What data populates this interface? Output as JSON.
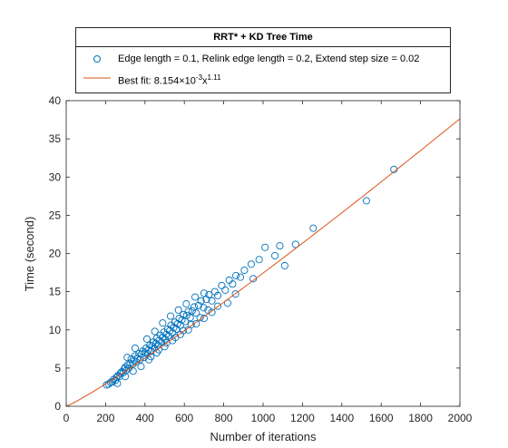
{
  "chart_data": {
    "type": "scatter",
    "title": "RRT* + KD Tree Time",
    "xlabel": "Number of iterations",
    "ylabel": "Time (second)",
    "xlim": [
      0,
      2000
    ],
    "ylim": [
      0,
      40
    ],
    "xticks": [
      0,
      200,
      400,
      600,
      800,
      1000,
      1200,
      1400,
      1600,
      1800,
      2000
    ],
    "yticks": [
      0,
      5,
      10,
      15,
      20,
      25,
      30,
      35,
      40
    ],
    "grid": false,
    "legend_position": "top-center (outside axes)",
    "series": [
      {
        "name": "Edge length = 0.1, Relink edge length = 0.2, Extend step size = 0.02",
        "kind": "scatter",
        "marker": "open-circle",
        "color": "#0072BD",
        "points": [
          [
            205,
            2.8
          ],
          [
            215,
            2.9
          ],
          [
            225,
            3.1
          ],
          [
            235,
            3.2
          ],
          [
            240,
            3.5
          ],
          [
            250,
            3.4
          ],
          [
            255,
            3.8
          ],
          [
            262,
            4.0
          ],
          [
            270,
            3.9
          ],
          [
            275,
            4.3
          ],
          [
            282,
            4.5
          ],
          [
            290,
            4.4
          ],
          [
            295,
            4.9
          ],
          [
            300,
            5.1
          ],
          [
            305,
            4.7
          ],
          [
            312,
            5.4
          ],
          [
            318,
            5.0
          ],
          [
            325,
            5.6
          ],
          [
            330,
            6.2
          ],
          [
            338,
            5.5
          ],
          [
            345,
            6.0
          ],
          [
            350,
            6.6
          ],
          [
            356,
            5.8
          ],
          [
            362,
            6.3
          ],
          [
            370,
            6.9
          ],
          [
            375,
            6.1
          ],
          [
            382,
            6.8
          ],
          [
            388,
            7.2
          ],
          [
            395,
            6.4
          ],
          [
            400,
            7.0
          ],
          [
            405,
            7.6
          ],
          [
            412,
            6.9
          ],
          [
            418,
            7.4
          ],
          [
            425,
            8.0
          ],
          [
            430,
            7.2
          ],
          [
            436,
            7.9
          ],
          [
            442,
            8.4
          ],
          [
            448,
            7.6
          ],
          [
            455,
            8.2
          ],
          [
            460,
            8.9
          ],
          [
            466,
            8.0
          ],
          [
            472,
            8.6
          ],
          [
            478,
            9.3
          ],
          [
            485,
            8.4
          ],
          [
            490,
            9.0
          ],
          [
            496,
            9.7
          ],
          [
            502,
            8.8
          ],
          [
            508,
            9.4
          ],
          [
            515,
            10.1
          ],
          [
            520,
            9.2
          ],
          [
            526,
            9.9
          ],
          [
            532,
            10.6
          ],
          [
            540,
            9.6
          ],
          [
            546,
            10.3
          ],
          [
            552,
            11.0
          ],
          [
            560,
            10.1
          ],
          [
            566,
            10.8
          ],
          [
            574,
            11.5
          ],
          [
            580,
            10.6
          ],
          [
            588,
            11.3
          ],
          [
            596,
            12.0
          ],
          [
            604,
            11.1
          ],
          [
            612,
            11.9
          ],
          [
            620,
            12.4
          ],
          [
            630,
            11.6
          ],
          [
            640,
            12.5
          ],
          [
            650,
            13.0
          ],
          [
            660,
            12.2
          ],
          [
            672,
            13.2
          ],
          [
            685,
            13.8
          ],
          [
            698,
            12.9
          ],
          [
            712,
            14.0
          ],
          [
            725,
            14.6
          ],
          [
            740,
            13.8
          ],
          [
            755,
            15.0
          ],
          [
            770,
            14.5
          ],
          [
            790,
            15.8
          ],
          [
            808,
            15.2
          ],
          [
            828,
            16.5
          ],
          [
            845,
            16.0
          ],
          [
            862,
            17.1
          ],
          [
            885,
            16.9
          ],
          [
            905,
            17.8
          ],
          [
            940,
            18.6
          ],
          [
            980,
            19.2
          ],
          [
            1010,
            20.8
          ],
          [
            1060,
            19.7
          ],
          [
            1085,
            21.0
          ],
          [
            1110,
            18.4
          ],
          [
            1165,
            21.2
          ],
          [
            1255,
            23.3
          ],
          [
            1525,
            26.9
          ],
          [
            1665,
            31.0
          ],
          [
            380,
            5.2
          ],
          [
            420,
            6.1
          ],
          [
            460,
            7.0
          ],
          [
            500,
            7.8
          ],
          [
            540,
            8.6
          ],
          [
            580,
            9.4
          ],
          [
            620,
            10.0
          ],
          [
            660,
            10.8
          ],
          [
            700,
            11.5
          ],
          [
            740,
            12.3
          ],
          [
            820,
            13.5
          ],
          [
            310,
            6.4
          ],
          [
            350,
            7.6
          ],
          [
            410,
            8.8
          ],
          [
            450,
            9.8
          ],
          [
            490,
            10.9
          ],
          [
            530,
            11.8
          ],
          [
            570,
            12.6
          ],
          [
            610,
            13.4
          ],
          [
            655,
            14.3
          ],
          [
            700,
            14.8
          ],
          [
            260,
            3.0
          ],
          [
            300,
            3.9
          ],
          [
            340,
            4.6
          ],
          [
            430,
            6.5
          ],
          [
            470,
            7.4
          ],
          [
            510,
            8.3
          ],
          [
            555,
            9.0
          ],
          [
            595,
            9.9
          ],
          [
            635,
            10.7
          ],
          [
            680,
            11.6
          ],
          [
            720,
            12.6
          ],
          [
            770,
            13.1
          ],
          [
            860,
            14.7
          ],
          [
            950,
            16.7
          ]
        ]
      },
      {
        "name": "Best fit: 8.154×10⁻³x¹·¹¹",
        "kind": "line",
        "color": "#D95319",
        "coefficient": 0.008154,
        "exponent": 1.11
      }
    ]
  },
  "legend": {
    "entry1": "Edge length = 0.1, Relink edge length = 0.2, Extend step size = 0.02",
    "entry2_prefix": "Best fit: 8.154×10",
    "entry2_exp1": "-3",
    "entry2_mid": "x",
    "entry2_exp2": "1.11"
  }
}
